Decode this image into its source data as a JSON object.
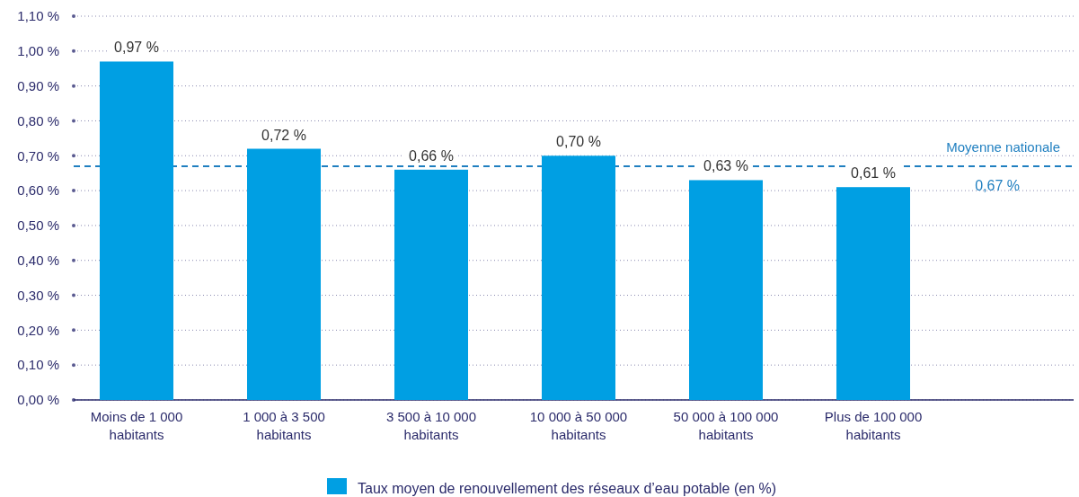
{
  "chart_data": {
    "type": "bar",
    "categories": [
      "Moins de 1 000\nhabitants",
      "1 000 à 3 500\nhabitants",
      "3 500 à 10 000\nhabitants",
      "10 000 à 50 000\nhabitants",
      "50 000 à 100 000\nhabitants",
      "Plus de 100 000\nhabitants"
    ],
    "series": [
      {
        "name": "Taux moyen de renouvellement des réseaux d’eau potable (en %)",
        "color": "#009fe3",
        "values": [
          0.97,
          0.72,
          0.66,
          0.7,
          0.63,
          0.61
        ],
        "value_labels": [
          "0,97 %",
          "0,72 %",
          "0,66 %",
          "0,70 %",
          "0,63 %",
          "0,61 %"
        ]
      }
    ],
    "ylim": [
      0,
      1.1
    ],
    "yticks": [
      {
        "value": 0,
        "label": "0,00 %"
      },
      {
        "value": 0.1,
        "label": "0,10 %"
      },
      {
        "value": 0.2,
        "label": "0,20 %"
      },
      {
        "value": 0.3,
        "label": "0,30 %"
      },
      {
        "value": 0.4,
        "label": "0,40 %"
      },
      {
        "value": 0.5,
        "label": "0,50 %"
      },
      {
        "value": 0.6,
        "label": "0,60 %"
      },
      {
        "value": 0.7,
        "label": "0,70 %"
      },
      {
        "value": 0.8,
        "label": "0,80 %"
      },
      {
        "value": 0.9,
        "label": "0,90 %"
      },
      {
        "value": 1.0,
        "label": "1,00 %"
      },
      {
        "value": 1.1,
        "label": "1,10 %"
      }
    ],
    "grid": "y",
    "legend": "bottom",
    "ref_lines": [
      {
        "axis": "y",
        "value": 0.67,
        "label": "Moyenne nationale",
        "color": "#1f7fc0",
        "line_style": "dashed"
      }
    ],
    "annotations": [
      {
        "text": "0,67 %",
        "y": 0.67
      }
    ]
  }
}
